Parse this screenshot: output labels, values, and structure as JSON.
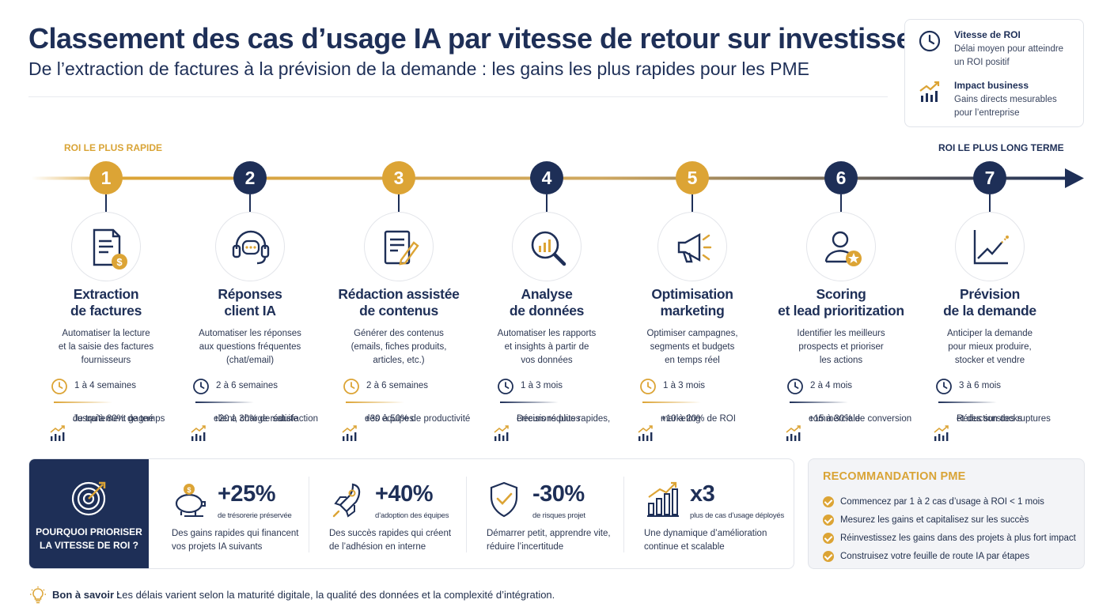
{
  "header": {
    "title": "Classement des cas d’usage IA par vitesse de retour sur investissement",
    "subtitle": "De l’extraction de factures à la prévision de la demande : les gains les plus rapides pour les PME"
  },
  "legend": {
    "speed": {
      "icon": "clock-icon",
      "title": "Vitesse de ROI",
      "desc": "Délai moyen pour atteindre un ROI positif"
    },
    "impact": {
      "icon": "trend-chart-icon",
      "title": "Impact business",
      "desc": "Gains directs mesurables pour l’entreprise"
    }
  },
  "timeline": {
    "left_label": "ROI LE PLUS RAPIDE",
    "right_label": "ROI LE PLUS LONG TERME",
    "colors": {
      "gold": "#dca435",
      "navy": "#1e2f57"
    }
  },
  "steps": [
    {
      "number": "1",
      "color": "gold",
      "icon": "invoice-dollar-icon",
      "title_line1": "Extraction",
      "title_line2": "de factures",
      "desc_line1": "Automatiser la lecture",
      "desc_line2": "et la saisie des factures",
      "desc_line3": "fournisseurs",
      "duration": "1 à 4 semaines",
      "impact_line1": "Jusqu’à 80% de temps",
      "impact_line2": "de traitement gagné"
    },
    {
      "number": "2",
      "color": "navy",
      "icon": "headset-chat-icon",
      "title_line1": "Réponses",
      "title_line2": "client IA",
      "desc_line1": "Automatiser les réponses",
      "desc_line2": "aux questions fréquentes",
      "desc_line3": "(chat/email)",
      "duration": "2 à 6 semaines",
      "impact_line1": "+20 à 30% de satisfaction",
      "impact_line2": "client, charge réduite"
    },
    {
      "number": "3",
      "color": "gold",
      "icon": "document-pen-icon",
      "title_line1": "Rédaction assistée",
      "title_line2": "de contenus",
      "desc_line1": "Générer des contenus",
      "desc_line2": "(emails, fiches produits,",
      "desc_line3": "articles, etc.)",
      "duration": "2 à 6 semaines",
      "impact_line1": "+30 à 50% de productivité",
      "impact_line2": "des équipes"
    },
    {
      "number": "4",
      "color": "navy",
      "icon": "magnifier-chart-icon",
      "title_line1": "Analyse",
      "title_line2": "de données",
      "desc_line1": "Automatiser les rapports",
      "desc_line2": "et insights à partir de",
      "desc_line3": "vos données",
      "duration": "1 à 3 mois",
      "impact_line1": "Décisions plus rapides,",
      "impact_line2": "erreurs réduites"
    },
    {
      "number": "5",
      "color": "gold",
      "icon": "megaphone-icon",
      "title_line1": "Optimisation",
      "title_line2": "marketing",
      "desc_line1": "Optimiser campagnes,",
      "desc_line2": "segments et budgets",
      "desc_line3": "en temps réel",
      "duration": "1 à 3 mois",
      "impact_line1": "+10 à 20% de ROI",
      "impact_line2": "marketing"
    },
    {
      "number": "6",
      "color": "navy",
      "icon": "user-star-icon",
      "title_line1": "Scoring",
      "title_line2": "et lead prioritization",
      "desc_line1": "Identifier les meilleurs",
      "desc_line2": "prospects et prioriser",
      "desc_line3": "les actions",
      "duration": "2 à 4 mois",
      "impact_line1": "+15 à 30% de conversion",
      "impact_line2": "commerciale"
    },
    {
      "number": "7",
      "color": "navy",
      "icon": "trend-line-icon",
      "title_line1": "Prévision",
      "title_line2": "de la demande",
      "desc_line1": "Anticiper la demande",
      "desc_line2": "pour mieux produire,",
      "desc_line3": "stocker et vendre",
      "duration": "3 à 6 mois",
      "impact_line1": "Réduction des ruptures",
      "impact_line2": "et des surstocks"
    }
  ],
  "why": {
    "icon": "target-arrow-icon",
    "label_line1": "POURQUOI PRIORISER",
    "label_line2": "LA VITESSE DE ROI ?",
    "stats": [
      {
        "icon": "piggy-bank-icon",
        "value": "+25%",
        "label": "de trésorerie préservée",
        "desc_line1": "Des gains rapides qui financent",
        "desc_line2": "vos projets IA suivants"
      },
      {
        "icon": "rocket-icon",
        "value": "+40%",
        "label": "d’adoption des équipes",
        "desc_line1": "Des succès rapides qui créent",
        "desc_line2": "de l’adhésion en interne"
      },
      {
        "icon": "shield-check-icon",
        "value": "-30%",
        "label": "de risques projet",
        "desc_line1": "Démarrer petit, apprendre vite,",
        "desc_line2": "réduire l’incertitude"
      },
      {
        "icon": "bar-growth-icon",
        "value": "x3",
        "label": "plus de cas d’usage déployés",
        "desc_line1": "Une dynamique d’amélioration",
        "desc_line2": "continue et scalable"
      }
    ]
  },
  "recommendation": {
    "title": "RECOMMANDATION PME",
    "items": [
      "Commencez par 1 à 2 cas d’usage à ROI < 1 mois",
      "Mesurez les gains et capitalisez sur les succès",
      "Réinvestissez les gains dans des projets à plus fort impact",
      "Construisez votre feuille de route IA par étapes"
    ]
  },
  "note": {
    "icon": "lightbulb-icon",
    "bold": "Bon à savoir :",
    "text": "Les délais varient selon la maturité digitale, la qualité des données et la complexité d’intégration."
  }
}
